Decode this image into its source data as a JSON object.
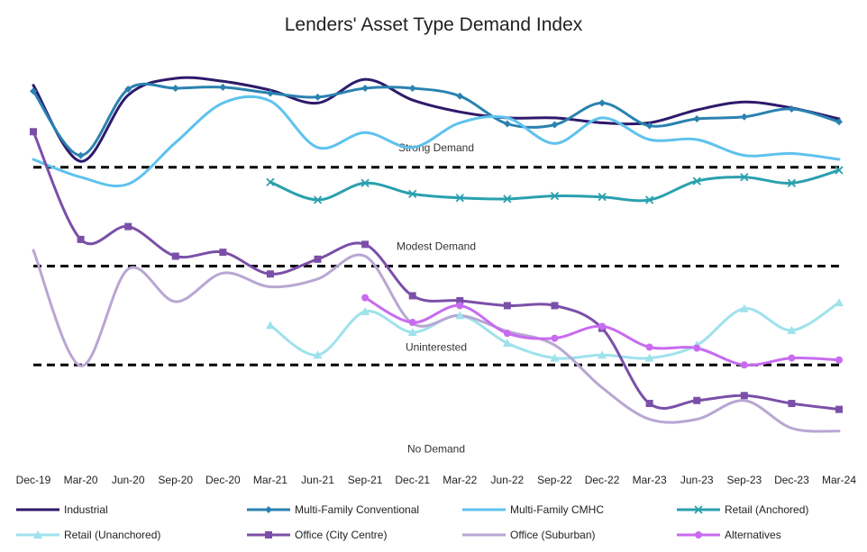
{
  "chart_data": {
    "type": "line",
    "title": "Lenders' Asset Type Demand Index",
    "categories": [
      "Dec-19",
      "Mar-20",
      "Jun-20",
      "Sep-20",
      "Dec-20",
      "Mar-21",
      "Jun-21",
      "Sep-21",
      "Dec-21",
      "Mar-22",
      "Jun-22",
      "Sep-22",
      "Dec-22",
      "Mar-23",
      "Jun-23",
      "Sep-23",
      "Dec-23",
      "Mar-24"
    ],
    "ylim": [
      0,
      4
    ],
    "grid": false,
    "legend_position": "bottom",
    "zones": [
      {
        "label": "Strong Demand",
        "y": 3.2
      },
      {
        "label": "Modest Demand",
        "y": 2.2
      },
      {
        "label": "Uninterested",
        "y": 1.18
      },
      {
        "label": "No Demand",
        "y": 0.15
      }
    ],
    "thresholds": [
      3,
      2,
      1
    ],
    "series": [
      {
        "name": "Industrial",
        "color": "#2e1a6b",
        "marker": "none",
        "values": [
          3.83,
          3.06,
          3.73,
          3.9,
          3.87,
          3.78,
          3.65,
          3.89,
          3.68,
          3.56,
          3.5,
          3.5,
          3.45,
          3.45,
          3.58,
          3.66,
          3.6,
          3.49
        ]
      },
      {
        "name": "Multi-Family Conventional",
        "color": "#2a82b0",
        "marker": "diamond",
        "values": [
          3.77,
          3.12,
          3.79,
          3.8,
          3.81,
          3.75,
          3.71,
          3.8,
          3.8,
          3.72,
          3.44,
          3.43,
          3.65,
          3.42,
          3.49,
          3.51,
          3.59,
          3.46
        ]
      },
      {
        "name": "Multi-Family CMHC",
        "color": "#5ec2ee",
        "marker": "none",
        "values": [
          3.08,
          2.9,
          2.83,
          3.25,
          3.65,
          3.67,
          3.2,
          3.35,
          3.2,
          3.45,
          3.5,
          3.24,
          3.5,
          3.28,
          3.28,
          3.12,
          3.14,
          3.08
        ]
      },
      {
        "name": "Retail (Anchored)",
        "color": "#2aa0ae",
        "marker": "x",
        "values": [
          null,
          null,
          null,
          null,
          null,
          2.85,
          2.67,
          2.84,
          2.73,
          2.69,
          2.68,
          2.71,
          2.7,
          2.67,
          2.86,
          2.9,
          2.84,
          2.97
        ]
      },
      {
        "name": "Retail (Unanchored)",
        "color": "#9ee2ec",
        "marker": "triangle",
        "values": [
          null,
          null,
          null,
          null,
          null,
          1.4,
          1.1,
          1.54,
          1.33,
          1.5,
          1.22,
          1.07,
          1.1,
          1.07,
          1.2,
          1.57,
          1.35,
          1.63
        ]
      },
      {
        "name": "Office (City Centre)",
        "color": "#7b4fa8",
        "marker": "square",
        "values": [
          3.36,
          2.27,
          2.4,
          2.1,
          2.14,
          1.92,
          2.07,
          2.22,
          1.7,
          1.65,
          1.6,
          1.6,
          1.37,
          0.61,
          0.64,
          0.69,
          0.61,
          0.55
        ]
      },
      {
        "name": "Office (Suburban)",
        "color": "#b8a6d3",
        "marker": "none",
        "values": [
          2.16,
          0.99,
          1.97,
          1.64,
          1.93,
          1.79,
          1.87,
          2.1,
          1.42,
          1.5,
          1.34,
          1.2,
          0.77,
          0.45,
          0.45,
          0.64,
          0.36,
          0.33
        ]
      },
      {
        "name": "Alternatives",
        "color": "#c86bf0",
        "marker": "circle",
        "values": [
          null,
          null,
          null,
          null,
          null,
          null,
          null,
          1.68,
          1.43,
          1.6,
          1.32,
          1.27,
          1.39,
          1.18,
          1.17,
          1.0,
          1.07,
          1.05
        ]
      }
    ]
  }
}
